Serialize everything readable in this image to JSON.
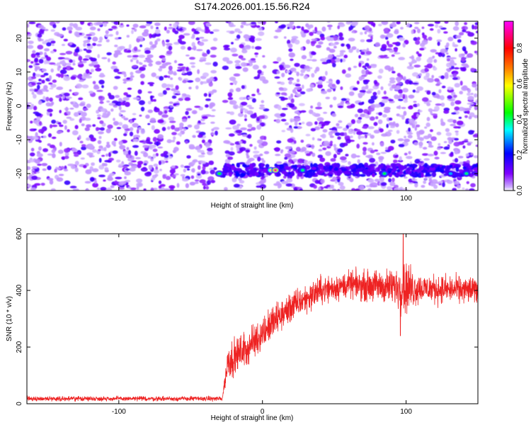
{
  "page": {
    "title": "S174.2026.001.15.56.R24"
  },
  "chart_data": [
    {
      "type": "heatmap",
      "title": "S174.2026.001.15.56.R24",
      "xlabel": "Height of straight line (km)",
      "ylabel": "Frequency (Hz)",
      "xlim": [
        -164,
        150
      ],
      "ylim": [
        -25,
        25
      ],
      "x_ticks": [
        -100,
        0,
        100
      ],
      "x_tick_labels": [
        "-100",
        "0",
        "100"
      ],
      "y_ticks": [
        -20,
        -10,
        0,
        10,
        20
      ],
      "y_tick_labels": [
        "-20",
        "-10",
        "0",
        "10",
        "20"
      ],
      "grid": false,
      "colorbar": {
        "label": "Normalized spectral amplitude",
        "range": [
          0,
          0.95
        ],
        "ticks": [
          0.0,
          0.2,
          0.4,
          0.6,
          0.8
        ],
        "tick_labels": [
          "0.0",
          "0.2",
          "0.4",
          "0.6",
          "0.8"
        ],
        "colors": [
          "#ffffff",
          "#7f00ff",
          "#0000ff",
          "#00ffff",
          "#00ff00",
          "#ffff00",
          "#ff7f00",
          "#ff0000",
          "#ff00ff"
        ]
      },
      "blank_columns": [
        [
          -32,
          -26
        ],
        [
          3,
          9
        ]
      ],
      "signal_band": {
        "frequency": -19,
        "start": -32,
        "end": 150
      },
      "hotspots": [
        {
          "x": -30,
          "y": -20,
          "amplitude": 0.45
        },
        {
          "x": 6,
          "y": -19,
          "amplitude": 0.6
        },
        {
          "x": 9,
          "y": -19,
          "amplitude": 0.9
        },
        {
          "x": 28,
          "y": -19,
          "amplitude": 0.4
        },
        {
          "x": 85,
          "y": -20,
          "amplitude": 0.42
        },
        {
          "x": 131,
          "y": -20,
          "amplitude": 0.3
        },
        {
          "x": 142,
          "y": -20,
          "amplitude": 0.4
        }
      ]
    },
    {
      "type": "line",
      "xlabel": "Height of straight line (km)",
      "ylabel": "SNR (10 * v/v)",
      "xlim": [
        -164,
        150
      ],
      "ylim": [
        0,
        600
      ],
      "x_ticks": [
        -100,
        0,
        100
      ],
      "x_tick_labels": [
        "-100",
        "0",
        "100"
      ],
      "y_ticks": [
        0,
        200,
        400,
        600
      ],
      "y_tick_labels": [
        "0",
        "200",
        "400",
        "600"
      ],
      "grid": false,
      "color": "#ee2222",
      "profile": {
        "x": [
          -164,
          -28,
          -24,
          -10,
          0,
          10,
          20,
          30,
          40,
          60,
          80,
          100,
          120,
          150
        ],
        "y": [
          18,
          18,
          150,
          200,
          250,
          300,
          340,
          370,
          400,
          420,
          415,
          410,
          405,
          400
        ]
      },
      "noise": {
        "x": [
          -164,
          -28,
          -24,
          0,
          30,
          60,
          90,
          100,
          110,
          150
        ],
        "y": [
          8,
          8,
          60,
          60,
          50,
          45,
          60,
          90,
          50,
          45
        ]
      },
      "max": {
        "x": 98,
        "y": 600
      },
      "min_after_onset": {
        "x": 96,
        "y": 240
      }
    }
  ]
}
